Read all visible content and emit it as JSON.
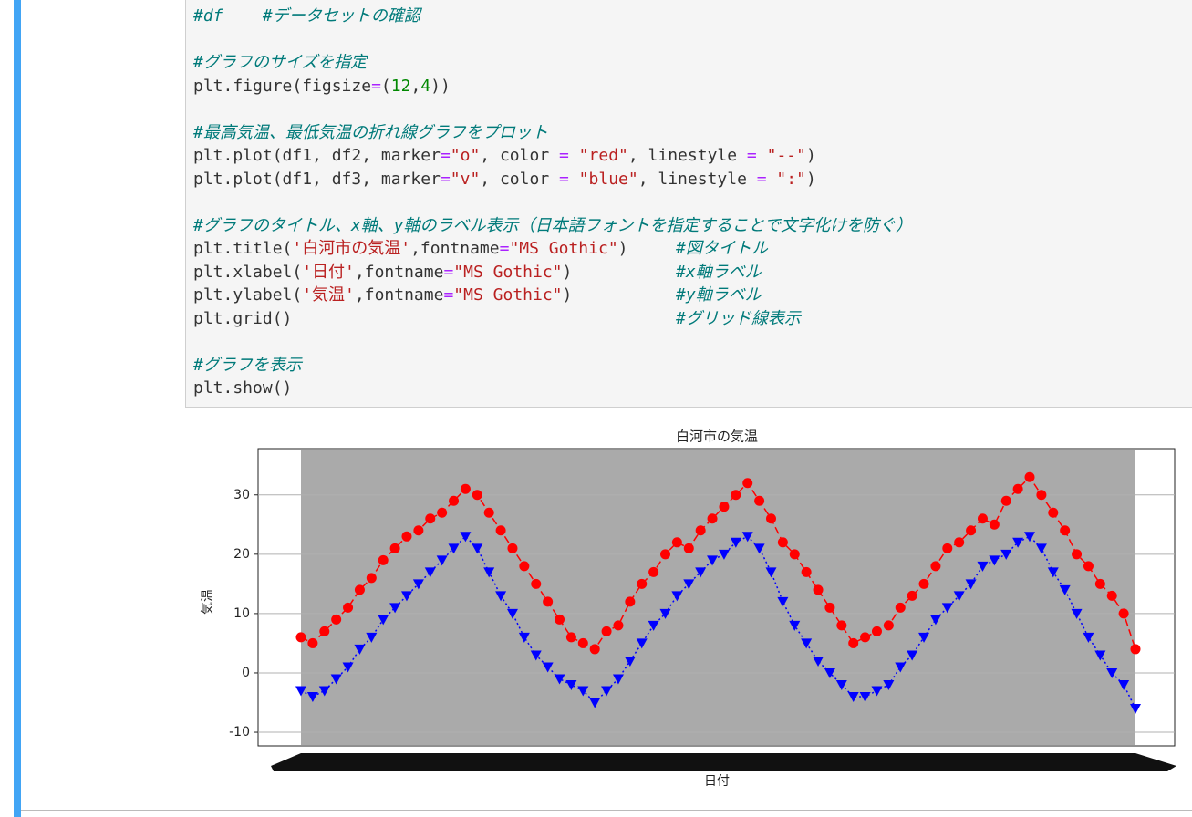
{
  "code_cell": {
    "lines": [
      {
        "tokens": [
          {
            "text": "#df    #データセットの確認",
            "color": "#007a7a",
            "italic": true
          }
        ]
      },
      {
        "tokens": []
      },
      {
        "tokens": [
          {
            "text": "#グラフのサイズを指定",
            "color": "#007a7a",
            "italic": true
          }
        ]
      },
      {
        "tokens": [
          {
            "text": "plt.figure(figsize",
            "color": "#333333"
          },
          {
            "text": "=",
            "color": "#aa22ff"
          },
          {
            "text": "(",
            "color": "#333333"
          },
          {
            "text": "12",
            "color": "#008800"
          },
          {
            "text": ",",
            "color": "#333333"
          },
          {
            "text": "4",
            "color": "#008800"
          },
          {
            "text": "))",
            "color": "#333333"
          }
        ]
      },
      {
        "tokens": []
      },
      {
        "tokens": [
          {
            "text": "#最高気温、最低気温の折れ線グラフをプロット",
            "color": "#007a7a",
            "italic": true
          }
        ]
      },
      {
        "tokens": [
          {
            "text": "plt.plot(df1, df2, marker",
            "color": "#333333"
          },
          {
            "text": "=",
            "color": "#aa22ff"
          },
          {
            "text": "\"o\"",
            "color": "#ba2121"
          },
          {
            "text": ", color ",
            "color": "#333333"
          },
          {
            "text": "=",
            "color": "#aa22ff"
          },
          {
            "text": " \"red\"",
            "color": "#ba2121"
          },
          {
            "text": ", linestyle ",
            "color": "#333333"
          },
          {
            "text": "=",
            "color": "#aa22ff"
          },
          {
            "text": " \"--\"",
            "color": "#ba2121"
          },
          {
            "text": ")",
            "color": "#333333"
          }
        ]
      },
      {
        "tokens": [
          {
            "text": "plt.plot(df1, df3, marker",
            "color": "#333333"
          },
          {
            "text": "=",
            "color": "#aa22ff"
          },
          {
            "text": "\"v\"",
            "color": "#ba2121"
          },
          {
            "text": ", color ",
            "color": "#333333"
          },
          {
            "text": "=",
            "color": "#aa22ff"
          },
          {
            "text": " \"blue\"",
            "color": "#ba2121"
          },
          {
            "text": ", linestyle ",
            "color": "#333333"
          },
          {
            "text": "=",
            "color": "#aa22ff"
          },
          {
            "text": " \":\"",
            "color": "#ba2121"
          },
          {
            "text": ")",
            "color": "#333333"
          }
        ]
      },
      {
        "tokens": []
      },
      {
        "tokens": [
          {
            "text": "#グラフのタイトル、x軸、y軸のラベル表示（日本語フォントを指定することで文字化けを防ぐ）",
            "color": "#007a7a",
            "italic": true
          }
        ]
      },
      {
        "tokens": [
          {
            "text": "plt.title(",
            "color": "#333333"
          },
          {
            "text": "'白河市の気温'",
            "color": "#ba2121"
          },
          {
            "text": ",fontname",
            "color": "#333333"
          },
          {
            "text": "=",
            "color": "#aa22ff"
          },
          {
            "text": "\"MS Gothic\"",
            "color": "#ba2121"
          },
          {
            "text": ")",
            "color": "#333333"
          }
        ],
        "comment": "#図タイトル"
      },
      {
        "tokens": [
          {
            "text": "plt.xlabel(",
            "color": "#333333"
          },
          {
            "text": "'日付'",
            "color": "#ba2121"
          },
          {
            "text": ",fontname",
            "color": "#333333"
          },
          {
            "text": "=",
            "color": "#aa22ff"
          },
          {
            "text": "\"MS Gothic\"",
            "color": "#ba2121"
          },
          {
            "text": ")",
            "color": "#333333"
          }
        ],
        "comment": "#x軸ラベル"
      },
      {
        "tokens": [
          {
            "text": "plt.ylabel(",
            "color": "#333333"
          },
          {
            "text": "'気温'",
            "color": "#ba2121"
          },
          {
            "text": ",fontname",
            "color": "#333333"
          },
          {
            "text": "=",
            "color": "#aa22ff"
          },
          {
            "text": "\"MS Gothic\"",
            "color": "#ba2121"
          },
          {
            "text": ")",
            "color": "#333333"
          }
        ],
        "comment": "#y軸ラベル"
      },
      {
        "tokens": [
          {
            "text": "plt.grid()",
            "color": "#333333"
          }
        ],
        "comment": "#グリッド線表示"
      },
      {
        "tokens": []
      },
      {
        "tokens": [
          {
            "text": "#グラフを表示",
            "color": "#007a7a",
            "italic": true
          }
        ]
      },
      {
        "tokens": [
          {
            "text": "plt.show()",
            "color": "#333333"
          }
        ]
      }
    ]
  },
  "chart_data": {
    "type": "line",
    "title": "白河市の気温",
    "x_label": "日付",
    "y_label": "気温",
    "categories": [
      null,
      null,
      null,
      null,
      null,
      null,
      null,
      null,
      null,
      null,
      null,
      null,
      null,
      null,
      null,
      null,
      null,
      null,
      null,
      null,
      null,
      null,
      null,
      null,
      null,
      null,
      null,
      null,
      null,
      null,
      null,
      null,
      null,
      null,
      null,
      null,
      null,
      null,
      null,
      null,
      null,
      null,
      null,
      null,
      null,
      null,
      null,
      null,
      null,
      null,
      null,
      null,
      null,
      null,
      null,
      null,
      null,
      null,
      null,
      null,
      null,
      null,
      null,
      null,
      null,
      null,
      null,
      null,
      null,
      null,
      null,
      null
    ],
    "series": [
      {
        "color": "#ff0000",
        "marker": "o",
        "linestyle": "--",
        "values": [
          6,
          5,
          7,
          9,
          11,
          14,
          16,
          19,
          21,
          23,
          24,
          26,
          27,
          29,
          31,
          30,
          27,
          24,
          21,
          18,
          15,
          12,
          9,
          6,
          5,
          4,
          7,
          8,
          12,
          15,
          17,
          20,
          22,
          21,
          24,
          26,
          28,
          30,
          32,
          29,
          26,
          22,
          20,
          17,
          14,
          11,
          8,
          5,
          6,
          7,
          8,
          11,
          13,
          15,
          18,
          21,
          22,
          24,
          26,
          25,
          29,
          31,
          33,
          30,
          27,
          24,
          20,
          18,
          15,
          13,
          10,
          4
        ]
      },
      {
        "color": "#0000ff",
        "marker": "v",
        "linestyle": ":",
        "values": [
          -3,
          -4,
          -3,
          -1,
          1,
          4,
          6,
          9,
          11,
          13,
          15,
          17,
          19,
          21,
          23,
          21,
          17,
          13,
          10,
          6,
          3,
          1,
          -1,
          -2,
          -3,
          -5,
          -3,
          -1,
          2,
          5,
          8,
          10,
          13,
          15,
          17,
          19,
          20,
          22,
          23,
          21,
          17,
          12,
          8,
          5,
          2,
          0,
          -2,
          -4,
          -4,
          -3,
          -2,
          1,
          3,
          6,
          9,
          11,
          13,
          15,
          18,
          19,
          20,
          22,
          23,
          21,
          17,
          14,
          10,
          6,
          3,
          0,
          -2,
          -6
        ]
      }
    ],
    "ylim": [
      -12.3,
      37.8
    ],
    "yticks": [
      -10,
      0,
      10,
      20,
      30
    ],
    "grid": true
  }
}
